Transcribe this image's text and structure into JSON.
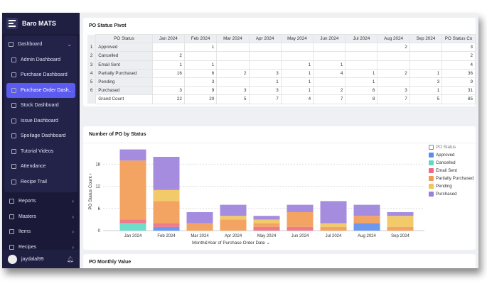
{
  "app": {
    "title": "Baro MATS"
  },
  "sidebar": {
    "group": "Dashboard",
    "items": [
      "Admin Dashboard",
      "Purchase Dashboard",
      "Purchase Order Dash...",
      "Stock Dashboard",
      "Issue Dashboard",
      "Spoilage Dashboard",
      "Tutorial Videos",
      "Attendance",
      "Recipe Trail"
    ],
    "active": 2,
    "sections": [
      "Reports",
      "Masters",
      "Items",
      "Recipes"
    ],
    "user": "jaydalal99"
  },
  "pivot": {
    "title": "PO Status Pivot",
    "header": [
      "PO Status",
      "Jan 2024",
      "Feb 2024",
      "Mar 2024",
      "Apr 2024",
      "May 2024",
      "Jun 2024",
      "Jul 2024",
      "Aug 2024",
      "Sep 2024",
      "PO Status Co"
    ],
    "rows": [
      {
        "i": "1",
        "s": "Approved",
        "v": [
          "",
          "1",
          "",
          "",
          "",
          "",
          "",
          "2",
          "",
          "3"
        ]
      },
      {
        "i": "2",
        "s": "Cancelled",
        "v": [
          "2",
          "",
          "",
          "",
          "",
          "",
          "",
          "",
          "",
          "2"
        ]
      },
      {
        "i": "3",
        "s": "Email Sent",
        "v": [
          "1",
          "1",
          "",
          "",
          "1",
          "1",
          "",
          "",
          "",
          "4"
        ]
      },
      {
        "i": "4",
        "s": "Partially Purchased",
        "v": [
          "16",
          "6",
          "2",
          "3",
          "1",
          "4",
          "1",
          "2",
          "1",
          "36"
        ]
      },
      {
        "i": "5",
        "s": "Pending",
        "v": [
          "",
          "3",
          "",
          "1",
          "1",
          "",
          "1",
          "",
          "3",
          "9"
        ]
      },
      {
        "i": "6",
        "s": "Purchased",
        "v": [
          "3",
          "9",
          "3",
          "3",
          "1",
          "2",
          "6",
          "3",
          "1",
          "31"
        ]
      }
    ],
    "total": {
      "s": "Grand Count",
      "v": [
        "22",
        "20",
        "5",
        "7",
        "4",
        "7",
        "8",
        "7",
        "5",
        "85"
      ]
    }
  },
  "chart_data": {
    "type": "bar",
    "stacked": true,
    "title": "Number of PO by Status",
    "xlabel": "Month&Year of Purchase Order Date",
    "ylabel": "PO Status Count",
    "ylim": [
      0,
      22
    ],
    "yticks": [
      0,
      6,
      12,
      18
    ],
    "grid": true,
    "legend_position": "right",
    "legend_title": "PO Status",
    "categories": [
      "Jan 2024",
      "Feb 2024",
      "Mar 2024",
      "Apr 2024",
      "May 2024",
      "Jun 2024",
      "Jul 2024",
      "Aug 2024",
      "Sep 2024"
    ],
    "series": [
      {
        "name": "Approved",
        "color": "#5b8def",
        "values": [
          0,
          1,
          0,
          0,
          0,
          0,
          0,
          2,
          0
        ]
      },
      {
        "name": "Cancelled",
        "color": "#5fd9c3",
        "values": [
          2,
          0,
          0,
          0,
          0,
          0,
          0,
          0,
          0
        ]
      },
      {
        "name": "Email Sent",
        "color": "#ec6b7d",
        "values": [
          1,
          1,
          0,
          0,
          1,
          1,
          0,
          0,
          0
        ]
      },
      {
        "name": "Partially Purchased",
        "color": "#f29a52",
        "values": [
          16,
          6,
          2,
          3,
          1,
          4,
          1,
          2,
          1
        ]
      },
      {
        "name": "Pending",
        "color": "#f2c45a",
        "values": [
          0,
          3,
          0,
          1,
          1,
          0,
          1,
          0,
          3
        ]
      },
      {
        "name": "Purchased",
        "color": "#9b7fdc",
        "values": [
          3,
          9,
          3,
          3,
          1,
          2,
          6,
          3,
          1
        ]
      }
    ]
  },
  "monthly": {
    "title": "PO Monthly Value"
  }
}
